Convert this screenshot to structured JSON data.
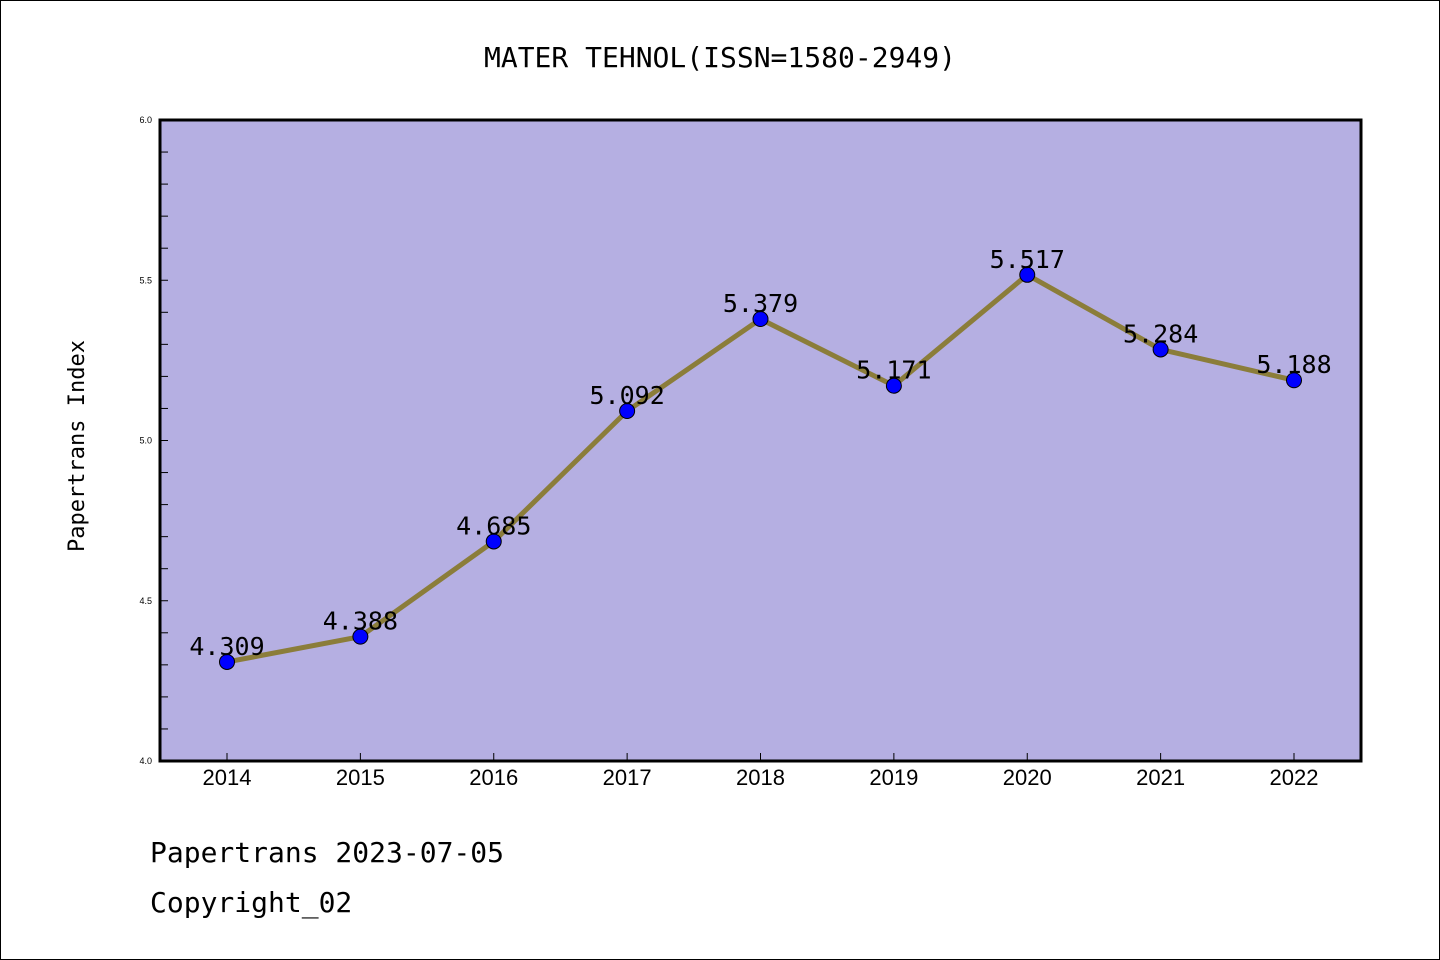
{
  "chart_data": {
    "type": "line",
    "title": "MATER TEHNOL(ISSN=1580-2949)",
    "xlabel": "",
    "ylabel": "Papertrans Index",
    "categories": [
      "2014",
      "2015",
      "2016",
      "2017",
      "2018",
      "2019",
      "2020",
      "2021",
      "2022"
    ],
    "series": [
      {
        "values": [
          4.309,
          4.388,
          4.685,
          5.092,
          5.379,
          5.171,
          5.517,
          5.284,
          5.188
        ],
        "labels": [
          "4.309",
          "4.388",
          "4.685",
          "5.092",
          "5.379",
          "5.171",
          "5.517",
          "5.284",
          "5.188"
        ]
      }
    ],
    "ylim": [
      4.0,
      6.0
    ],
    "yticks": [
      "4.0",
      "4.5",
      "5.0",
      "5.5",
      "6.0"
    ],
    "grid": false,
    "colors": {
      "plot_background": "#b5afe2",
      "line": "#8b7d3a",
      "marker": "#0000ff"
    }
  },
  "footer": {
    "line1": "Papertrans 2023-07-05",
    "line2": "Copyright_02"
  }
}
